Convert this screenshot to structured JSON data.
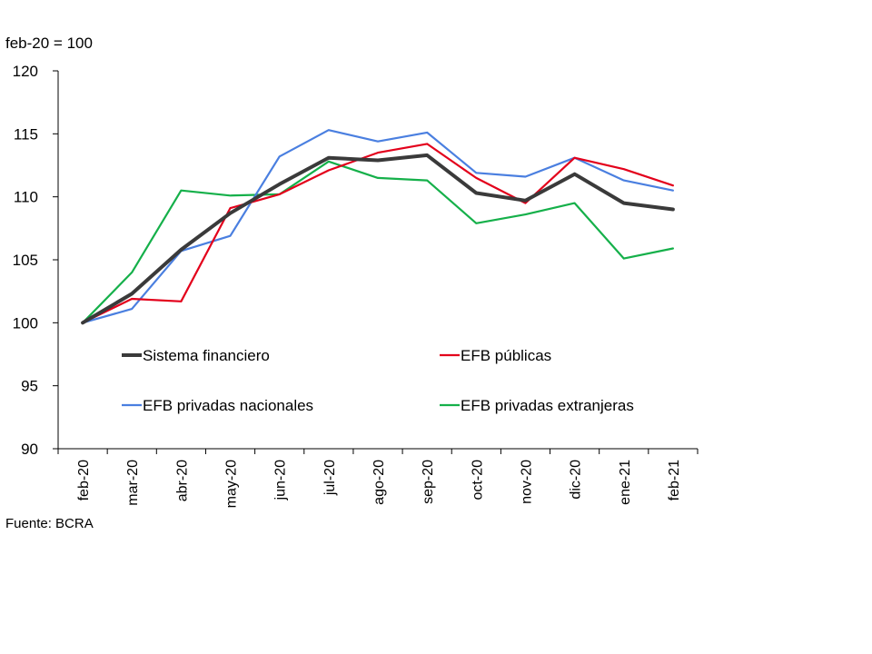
{
  "chart_data": {
    "type": "line",
    "unit_label": "feb-20 = 100",
    "source": "Fuente: BCRA",
    "categories": [
      "feb-20",
      "mar-20",
      "abr-20",
      "may-20",
      "jun-20",
      "jul-20",
      "ago-20",
      "sep-20",
      "oct-20",
      "nov-20",
      "dic-20",
      "ene-21",
      "feb-21"
    ],
    "ylim": [
      90,
      120
    ],
    "yticks": [
      90,
      95,
      100,
      105,
      110,
      115,
      120
    ],
    "series": [
      {
        "name": "Sistema financiero",
        "color": "#3a3a3a",
        "width": "thick",
        "values": [
          100,
          102.3,
          105.8,
          108.7,
          111.0,
          113.1,
          112.9,
          113.3,
          110.3,
          109.7,
          111.8,
          109.5,
          109.0
        ]
      },
      {
        "name": "EFB públicas",
        "color": "#e3001b",
        "width": "normal",
        "values": [
          100,
          101.9,
          101.7,
          109.1,
          110.2,
          112.1,
          113.5,
          114.2,
          111.5,
          109.5,
          113.1,
          112.2,
          110.9
        ]
      },
      {
        "name": "EFB privadas nacionales",
        "color": "#4a7fe0",
        "width": "normal",
        "values": [
          100,
          101.1,
          105.7,
          106.9,
          113.2,
          115.3,
          114.4,
          115.1,
          111.9,
          111.6,
          113.1,
          111.3,
          110.5
        ]
      },
      {
        "name": "EFB privadas extranjeras",
        "color": "#15b04a",
        "width": "normal",
        "values": [
          100,
          104.0,
          110.5,
          110.1,
          110.2,
          112.8,
          111.5,
          111.3,
          107.9,
          108.6,
          109.5,
          105.1,
          105.9
        ]
      }
    ],
    "legend_placement": "inside-lower, two columns"
  }
}
